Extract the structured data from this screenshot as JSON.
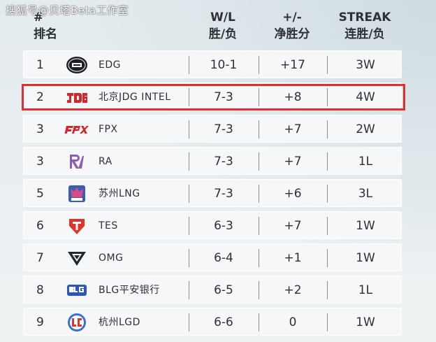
{
  "watermark": "搜狐号@贝塔Beta工作室",
  "columns": {
    "rank_top": "#",
    "rank_bottom": "排名",
    "wl_top": "W/L",
    "wl_bottom": "胜/负",
    "diff_top": "+/-",
    "diff_bottom": "净胜分",
    "streak_top": "STREAK",
    "streak_bottom": "连胜/负"
  },
  "rows": [
    {
      "rank": "1",
      "team": "EDG",
      "wl": "10-1",
      "diff": "+17",
      "streak": "3W",
      "logo": "edg-logo-icon"
    },
    {
      "rank": "2",
      "team": "北京JDG INTEL",
      "wl": "7-3",
      "diff": "+8",
      "streak": "4W",
      "logo": "jdg-logo-icon"
    },
    {
      "rank": "3",
      "team": "FPX",
      "wl": "7-3",
      "diff": "+7",
      "streak": "2W",
      "logo": "fpx-logo-icon"
    },
    {
      "rank": "3",
      "team": "RA",
      "wl": "7-3",
      "diff": "+7",
      "streak": "1L",
      "logo": "ra-logo-icon"
    },
    {
      "rank": "5",
      "team": "苏州LNG",
      "wl": "7-3",
      "diff": "+6",
      "streak": "3L",
      "logo": "lng-logo-icon"
    },
    {
      "rank": "6",
      "team": "TES",
      "wl": "6-3",
      "diff": "+7",
      "streak": "1W",
      "logo": "tes-logo-icon"
    },
    {
      "rank": "7",
      "team": "OMG",
      "wl": "6-4",
      "diff": "+1",
      "streak": "1W",
      "logo": "omg-logo-icon"
    },
    {
      "rank": "8",
      "team": "BLG平安银行",
      "wl": "6-5",
      "diff": "+2",
      "streak": "1L",
      "logo": "blg-logo-icon"
    },
    {
      "rank": "9",
      "team": "杭州LGD",
      "wl": "6-6",
      "diff": "0",
      "streak": "1W",
      "logo": "lgd-logo-icon"
    }
  ],
  "colors": {
    "highlight": "#e22d33",
    "jdg": "#d8232a",
    "fpx": "#d8232a",
    "ra": "#8e5bb5",
    "lng": "#3a5fb0",
    "tes": "#e0342b",
    "omg": "#1f2a33",
    "blg": "#2a57b8",
    "lgd": "#3b6fd4",
    "edg": "#1c1f24"
  },
  "highlighted_row": "2"
}
